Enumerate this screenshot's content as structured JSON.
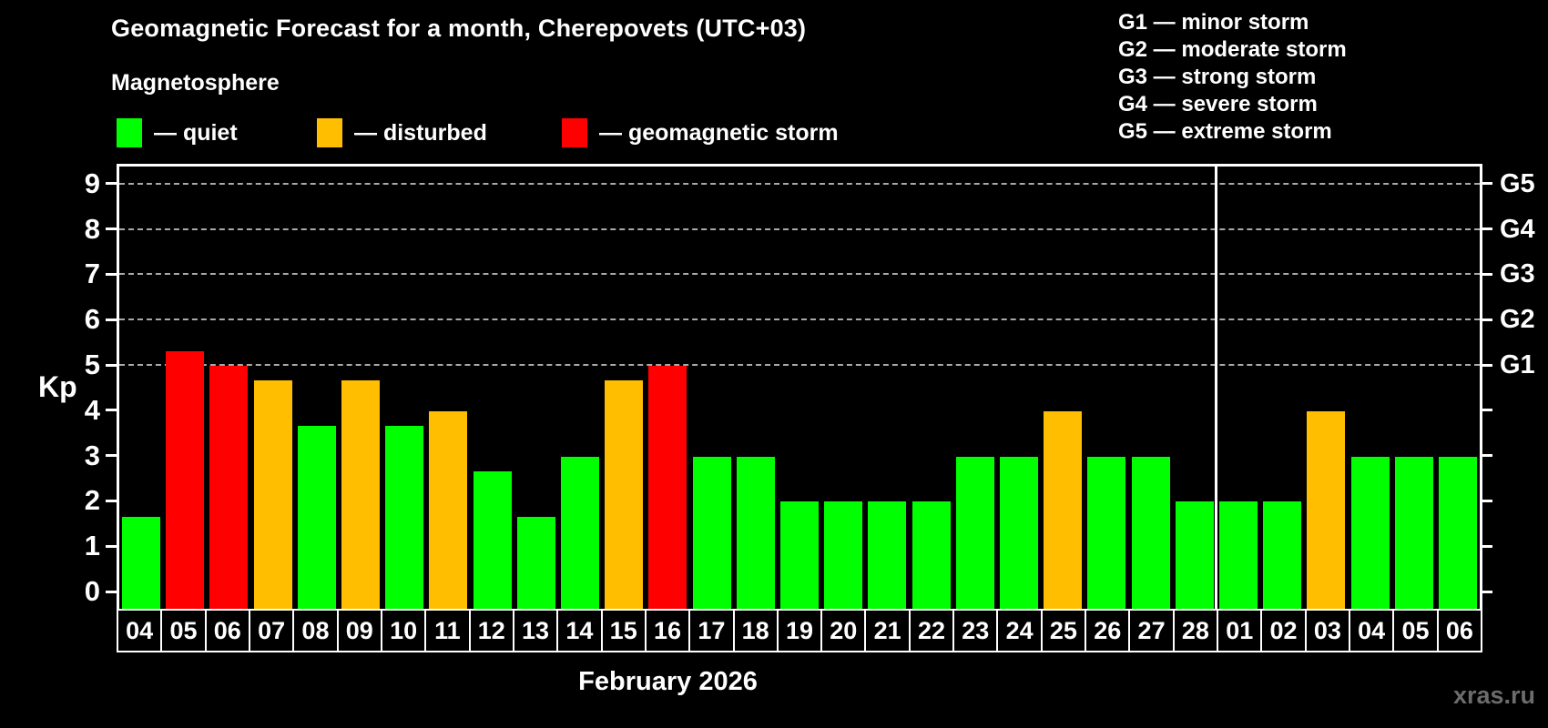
{
  "title": "Geomagnetic Forecast for a month, Cherepovets (UTC+03)",
  "subtitle": "Magnetosphere",
  "legend": {
    "items": [
      {
        "key": "quiet",
        "label": "— quiet",
        "color": "#00ff00"
      },
      {
        "key": "disturbed",
        "label": "— disturbed",
        "color": "#ffbf00"
      },
      {
        "key": "storm",
        "label": "— geomagnetic storm",
        "color": "#ff0000"
      }
    ]
  },
  "g_legend": {
    "lines": [
      "G1 — minor storm",
      "G2 — moderate storm",
      "G3 — strong storm",
      "G4 — severe storm",
      "G5 — extreme storm"
    ]
  },
  "watermark": "xras.ru",
  "chart_data": {
    "type": "bar",
    "title": "Geomagnetic Forecast for a month, Cherepovets (UTC+03)",
    "xlabel": "February 2026",
    "ylabel": "Kp",
    "ylim": [
      0,
      9
    ],
    "y_ticks": [
      0,
      1,
      2,
      3,
      4,
      5,
      6,
      7,
      8,
      9
    ],
    "grid_levels": [
      5,
      6,
      7,
      8,
      9
    ],
    "grid_style": "horizontal dashed lines at G-storm levels only",
    "legend_position": "top-left",
    "right_axis": {
      "labels": [
        "G1",
        "G2",
        "G3",
        "G4",
        "G5"
      ],
      "levels": [
        5,
        6,
        7,
        8,
        9
      ]
    },
    "categories": [
      "04",
      "05",
      "06",
      "07",
      "08",
      "09",
      "10",
      "11",
      "12",
      "13",
      "14",
      "15",
      "16",
      "17",
      "18",
      "19",
      "20",
      "21",
      "22",
      "23",
      "24",
      "25",
      "26",
      "27",
      "28",
      "01",
      "02",
      "03",
      "04",
      "05",
      "06"
    ],
    "values": [
      1.67,
      5.33,
      5.0,
      4.67,
      3.67,
      4.67,
      3.67,
      4.0,
      2.67,
      1.67,
      3.0,
      4.67,
      5.0,
      3.0,
      3.0,
      2.0,
      2.0,
      2.0,
      2.0,
      3.0,
      3.0,
      4.0,
      3.0,
      3.0,
      2.0,
      2.0,
      2.0,
      4.0,
      3.0,
      3.0,
      3.0
    ],
    "status": [
      "quiet",
      "storm",
      "storm",
      "disturbed",
      "quiet",
      "disturbed",
      "quiet",
      "disturbed",
      "quiet",
      "quiet",
      "quiet",
      "disturbed",
      "storm",
      "quiet",
      "quiet",
      "quiet",
      "quiet",
      "quiet",
      "quiet",
      "quiet",
      "quiet",
      "disturbed",
      "quiet",
      "quiet",
      "quiet",
      "quiet",
      "quiet",
      "disturbed",
      "quiet",
      "quiet",
      "quiet"
    ],
    "colors": {
      "quiet": "#00ff00",
      "disturbed": "#ffbf00",
      "storm": "#ff0000"
    },
    "month_separator_after_index": 24
  }
}
